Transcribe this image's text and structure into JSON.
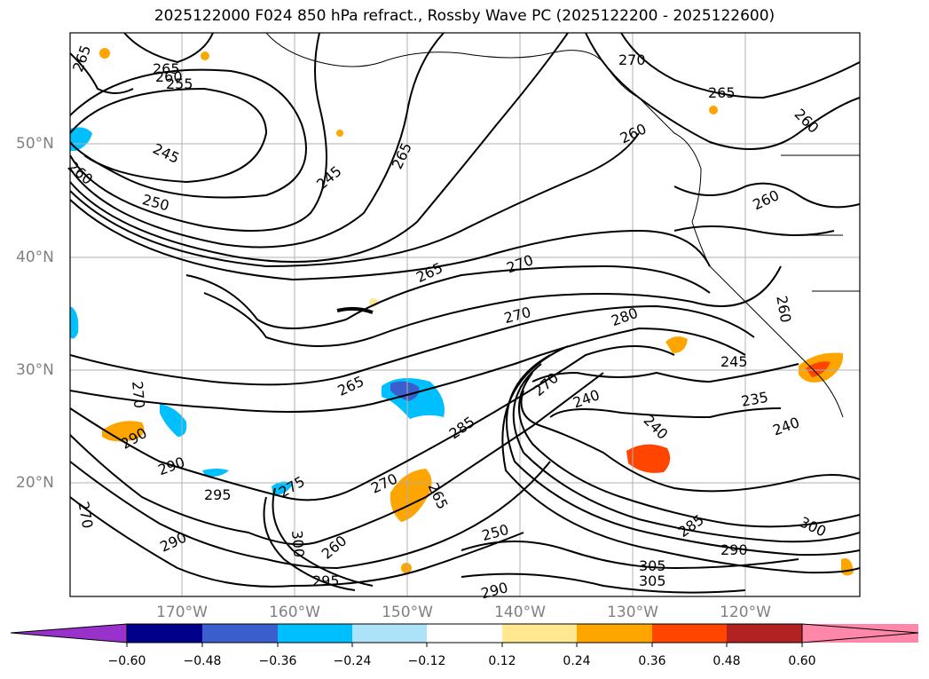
{
  "title": "2025122000 F024 850 hPa refract., Rossby Wave PC (2025122200 - 2025122600)",
  "map": {
    "lat_labels": [
      "50°N",
      "40°N",
      "30°N",
      "20°N"
    ],
    "lon_labels": [
      "170°W",
      "160°W",
      "150°W",
      "140°W",
      "130°W",
      "120°W"
    ],
    "contour_labels": [
      "265",
      "265",
      "260",
      "255",
      "245",
      "250",
      "260",
      "245",
      "265",
      "270",
      "265",
      "260",
      "260",
      "260",
      "265",
      "270",
      "270",
      "280",
      "260",
      "265",
      "245",
      "240",
      "235",
      "240",
      "240",
      "285",
      "270",
      "270",
      "290",
      "290",
      "295",
      "275",
      "270",
      "265",
      "260",
      "270",
      "300",
      "290",
      "295",
      "290",
      "250",
      "285",
      "290",
      "300",
      "305",
      "305"
    ]
  },
  "colorbar": {
    "tick_labels": [
      "−0.60",
      "−0.48",
      "−0.36",
      "−0.24",
      "−0.12",
      "0.12",
      "0.24",
      "0.36",
      "0.48",
      "0.60"
    ],
    "colors": [
      "#9932cc",
      "#00008b",
      "#3a5fcd",
      "#00bfff",
      "#ade3f8",
      "#ffffff",
      "#ffe88f",
      "#ffa500",
      "#ff4500",
      "#b22222",
      "#ff88aa"
    ]
  }
}
